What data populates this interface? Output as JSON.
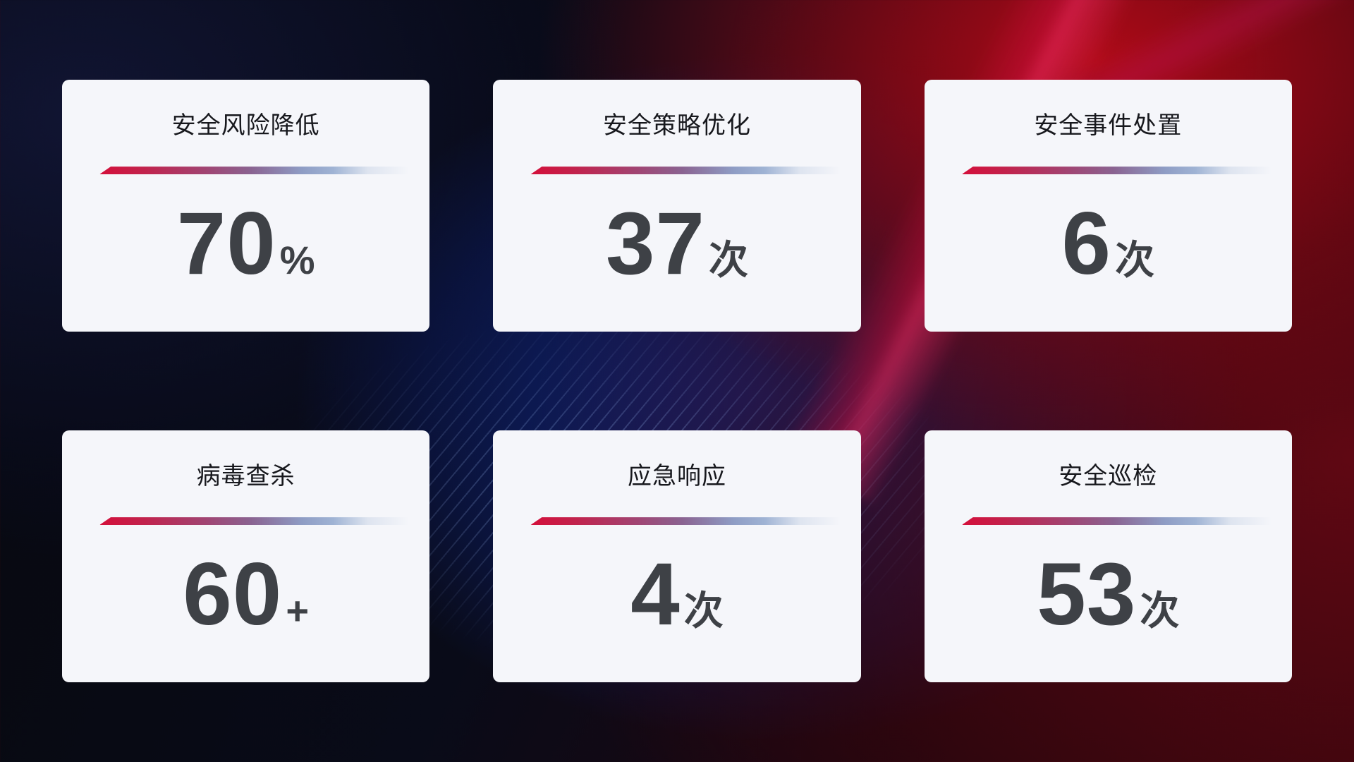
{
  "dashboard": {
    "cards": [
      {
        "title": "安全风险降低",
        "value": "70",
        "unit": "%"
      },
      {
        "title": "安全策略优化",
        "value": "37",
        "unit": "次"
      },
      {
        "title": "安全事件处置",
        "value": "6",
        "unit": "次"
      },
      {
        "title": "病毒查杀",
        "value": "60",
        "unit": "+"
      },
      {
        "title": "应急响应",
        "value": "4",
        "unit": "次"
      },
      {
        "title": "安全巡检",
        "value": "53",
        "unit": "次"
      }
    ]
  },
  "colors": {
    "card-bg": "#f5f6fa",
    "title-text": "#17181d",
    "value-text": "#3e4146",
    "divider-start": "#d40f3a",
    "divider-mid": "#8a6391",
    "divider-end": "#9fb3d4",
    "bg-navy": "#0c1124",
    "bg-blue-glow": "#12288a",
    "bg-red-bright": "#a50d15",
    "bg-red-dark": "#2a050a"
  }
}
